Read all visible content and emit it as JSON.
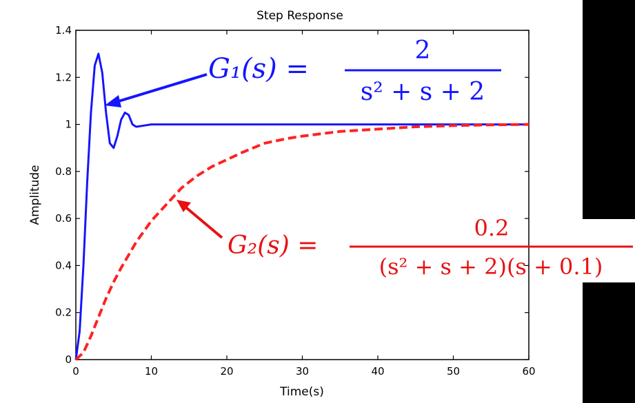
{
  "chart_data": {
    "type": "line",
    "title": "Step Response",
    "xlabel": "Time(s)",
    "ylabel": "Amplitude",
    "xlim": [
      0,
      60
    ],
    "ylim": [
      0,
      1.4
    ],
    "grid": false,
    "x_ticks": [
      "0",
      "10",
      "20",
      "30",
      "40",
      "50",
      "60"
    ],
    "y_ticks": [
      "0",
      "0.2",
      "0.4",
      "0.6",
      "0.8",
      "1",
      "1.2",
      "1.4"
    ],
    "series": [
      {
        "name": "G1",
        "color": "#1515ff",
        "x": [
          0,
          0.5,
          1,
          1.5,
          2,
          2.5,
          3,
          3.5,
          4,
          4.5,
          5,
          5.5,
          6,
          6.5,
          7,
          7.5,
          8,
          9,
          10,
          12,
          15,
          20,
          30,
          40,
          50,
          60
        ],
        "y": [
          0,
          0.12,
          0.4,
          0.75,
          1.05,
          1.25,
          1.3,
          1.22,
          1.05,
          0.92,
          0.9,
          0.95,
          1.02,
          1.05,
          1.04,
          1.0,
          0.99,
          0.995,
          1.0,
          1.0,
          1.0,
          1.0,
          1.0,
          1.0,
          1.0,
          1.0
        ]
      },
      {
        "name": "G2",
        "color": "#ff2222",
        "x": [
          0,
          1,
          2,
          3,
          4,
          5,
          6,
          8,
          10,
          12,
          14,
          16,
          18,
          20,
          22,
          25,
          28,
          30,
          35,
          40,
          45,
          50,
          55,
          60
        ],
        "y": [
          0,
          0.03,
          0.1,
          0.18,
          0.26,
          0.33,
          0.39,
          0.5,
          0.59,
          0.66,
          0.73,
          0.78,
          0.82,
          0.85,
          0.88,
          0.92,
          0.94,
          0.95,
          0.97,
          0.98,
          0.99,
          0.995,
          0.998,
          1.0
        ]
      }
    ],
    "annotations": {
      "g1": {
        "lhs": "G₁(s) =",
        "num": "2",
        "den": "s² + s + 2",
        "color": "#1515ff"
      },
      "g2": {
        "lhs": "G₂(s) =",
        "num": "0.2",
        "den": "(s² + s + 2)(s + 0.1)",
        "color": "#e81010"
      }
    }
  }
}
